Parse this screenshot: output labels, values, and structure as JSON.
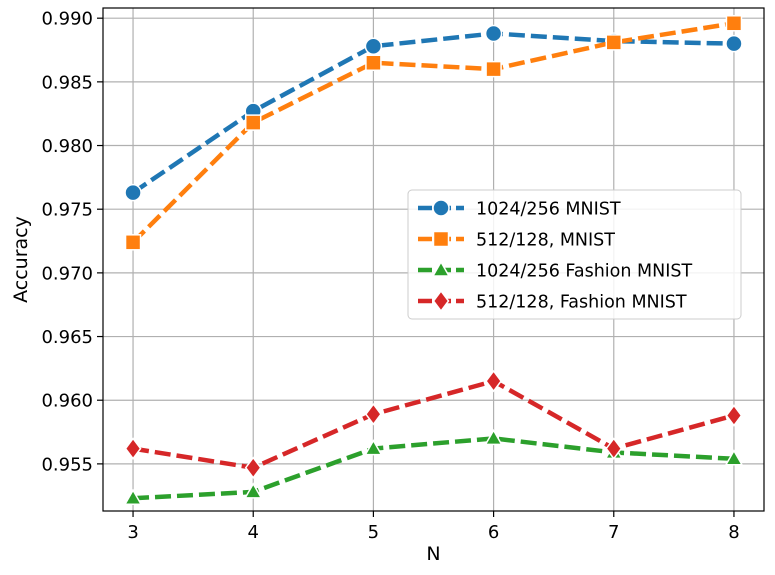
{
  "chart_data": {
    "type": "line",
    "title": "",
    "xlabel": "N",
    "ylabel": "Accuracy",
    "x": [
      3,
      4,
      5,
      6,
      7,
      8
    ],
    "xlim": [
      2.75,
      8.25
    ],
    "ylim": [
      0.9513,
      0.9908
    ],
    "x_ticks": [
      3,
      4,
      5,
      6,
      7,
      8
    ],
    "y_ticks": [
      0.955,
      0.96,
      0.965,
      0.97,
      0.975,
      0.98,
      0.985,
      0.99
    ],
    "y_tick_labels": [
      "0.955",
      "0.960",
      "0.965",
      "0.970",
      "0.975",
      "0.980",
      "0.985",
      "0.990"
    ],
    "grid": true,
    "legend_position": "center-right",
    "series": [
      {
        "name": "1024/256 MNIST",
        "color": "#1f77b4",
        "marker": "circle",
        "values": [
          0.9763,
          0.9827,
          0.9878,
          0.9888,
          0.9882,
          0.988
        ]
      },
      {
        "name": "512/128, MNIST",
        "color": "#ff7f0e",
        "marker": "square",
        "values": [
          0.9724,
          0.9818,
          0.9865,
          0.986,
          0.9881,
          0.9896
        ]
      },
      {
        "name": "1024/256 Fashion MNIST",
        "color": "#2ca02c",
        "marker": "triangle",
        "values": [
          0.9523,
          0.9528,
          0.9562,
          0.957,
          0.9559,
          0.9554
        ]
      },
      {
        "name": "512/128, Fashion MNIST",
        "color": "#d62728",
        "marker": "diamond",
        "values": [
          0.9562,
          0.9547,
          0.9589,
          0.9615,
          0.9562,
          0.9588
        ]
      }
    ]
  }
}
